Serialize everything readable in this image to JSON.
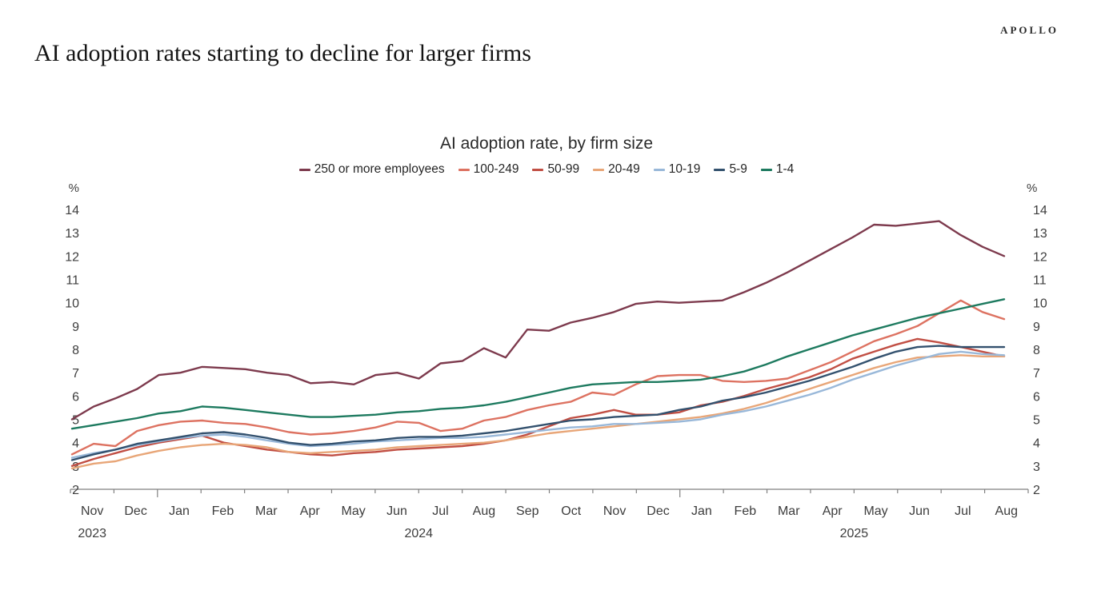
{
  "brand": "APOLLO",
  "headline": "AI adoption rates starting to decline for larger firms",
  "chart_data": {
    "type": "line",
    "title": "AI adoption rate, by firm size",
    "y_unit": "%",
    "ylim": [
      2,
      14
    ],
    "yticks": [
      2,
      3,
      4,
      5,
      6,
      7,
      8,
      9,
      10,
      11,
      12,
      13,
      14
    ],
    "grid": false,
    "legend_position": "top",
    "x_months": [
      "Nov",
      "Dec",
      "Jan",
      "Feb",
      "Mar",
      "Apr",
      "May",
      "Jun",
      "Jul",
      "Aug",
      "Sep",
      "Oct",
      "Nov",
      "Dec",
      "Jan",
      "Feb",
      "Mar",
      "Apr",
      "May",
      "Jun",
      "Jul",
      "Aug"
    ],
    "year_labels": [
      {
        "text": "2023",
        "slot": 0.5
      },
      {
        "text": "2024",
        "slot": 8
      },
      {
        "text": "2025",
        "slot": 18
      }
    ],
    "year_tick_slots": [
      2,
      14
    ],
    "x_note": "biweekly observations from Nov 2023 to late Jul 2025",
    "series": [
      {
        "name": "250 or more employees",
        "color": "#7d3a4d",
        "values": [
          5.0,
          5.55,
          5.9,
          6.3,
          6.9,
          7.0,
          7.25,
          7.2,
          7.15,
          7.0,
          6.9,
          6.55,
          6.6,
          6.5,
          6.9,
          7.0,
          6.75,
          7.4,
          7.5,
          8.05,
          7.65,
          8.85,
          8.8,
          9.15,
          9.35,
          9.6,
          9.95,
          10.05,
          10.0,
          10.05,
          10.1,
          10.45,
          10.85,
          11.3,
          11.8,
          12.3,
          12.8,
          13.35,
          13.3,
          13.4,
          13.5,
          12.9,
          12.4,
          12.0
        ]
      },
      {
        "name": "100-249",
        "color": "#dd7261",
        "values": [
          3.5,
          3.95,
          3.85,
          4.5,
          4.75,
          4.9,
          4.95,
          4.85,
          4.8,
          4.65,
          4.45,
          4.35,
          4.4,
          4.5,
          4.65,
          4.9,
          4.85,
          4.5,
          4.6,
          4.95,
          5.1,
          5.4,
          5.6,
          5.75,
          6.15,
          6.05,
          6.5,
          6.85,
          6.9,
          6.9,
          6.65,
          6.6,
          6.65,
          6.75,
          7.1,
          7.45,
          7.9,
          8.35,
          8.65,
          9.0,
          9.55,
          10.1,
          9.6,
          9.3
        ]
      },
      {
        "name": "50-99",
        "color": "#c14f44",
        "values": [
          3.0,
          3.3,
          3.55,
          3.8,
          4.0,
          4.15,
          4.3,
          4.0,
          3.85,
          3.7,
          3.6,
          3.5,
          3.45,
          3.55,
          3.6,
          3.7,
          3.75,
          3.8,
          3.85,
          3.95,
          4.1,
          4.35,
          4.7,
          5.05,
          5.2,
          5.4,
          5.2,
          5.2,
          5.3,
          5.6,
          5.75,
          6.0,
          6.3,
          6.55,
          6.8,
          7.15,
          7.6,
          7.9,
          8.2,
          8.45,
          8.3,
          8.1,
          7.9,
          7.7
        ]
      },
      {
        "name": "20-49",
        "color": "#e8a678",
        "values": [
          2.9,
          3.1,
          3.2,
          3.45,
          3.65,
          3.8,
          3.9,
          3.95,
          3.9,
          3.8,
          3.6,
          3.55,
          3.6,
          3.65,
          3.7,
          3.8,
          3.85,
          3.9,
          3.95,
          4.0,
          4.1,
          4.25,
          4.4,
          4.5,
          4.6,
          4.7,
          4.8,
          4.9,
          5.0,
          5.1,
          5.25,
          5.45,
          5.7,
          6.0,
          6.3,
          6.6,
          6.9,
          7.2,
          7.45,
          7.65,
          7.7,
          7.75,
          7.7,
          7.7
        ]
      },
      {
        "name": "10-19",
        "color": "#99b8d9",
        "values": [
          3.35,
          3.55,
          3.7,
          3.9,
          4.05,
          4.2,
          4.3,
          4.35,
          4.25,
          4.1,
          3.95,
          3.85,
          3.9,
          3.95,
          4.05,
          4.1,
          4.15,
          4.2,
          4.2,
          4.25,
          4.35,
          4.45,
          4.55,
          4.65,
          4.7,
          4.8,
          4.8,
          4.85,
          4.9,
          5.0,
          5.2,
          5.35,
          5.55,
          5.8,
          6.05,
          6.35,
          6.7,
          7.0,
          7.3,
          7.55,
          7.8,
          7.9,
          7.8,
          7.75
        ]
      },
      {
        "name": "5-9",
        "color": "#33516e",
        "values": [
          3.25,
          3.5,
          3.7,
          3.95,
          4.1,
          4.25,
          4.4,
          4.45,
          4.35,
          4.2,
          4.0,
          3.9,
          3.95,
          4.05,
          4.1,
          4.2,
          4.25,
          4.25,
          4.3,
          4.4,
          4.5,
          4.65,
          4.8,
          4.95,
          5.0,
          5.1,
          5.15,
          5.2,
          5.4,
          5.55,
          5.8,
          5.95,
          6.15,
          6.4,
          6.65,
          6.95,
          7.25,
          7.6,
          7.9,
          8.1,
          8.15,
          8.1,
          8.1,
          8.1
        ]
      },
      {
        "name": "1-4",
        "color": "#1d7a5f",
        "values": [
          4.6,
          4.75,
          4.9,
          5.05,
          5.25,
          5.35,
          5.55,
          5.5,
          5.4,
          5.3,
          5.2,
          5.1,
          5.1,
          5.15,
          5.2,
          5.3,
          5.35,
          5.45,
          5.5,
          5.6,
          5.75,
          5.95,
          6.15,
          6.35,
          6.5,
          6.55,
          6.6,
          6.6,
          6.65,
          6.7,
          6.85,
          7.05,
          7.35,
          7.7,
          8.0,
          8.3,
          8.6,
          8.85,
          9.1,
          9.35,
          9.55,
          9.75,
          9.95,
          10.15
        ]
      }
    ]
  }
}
